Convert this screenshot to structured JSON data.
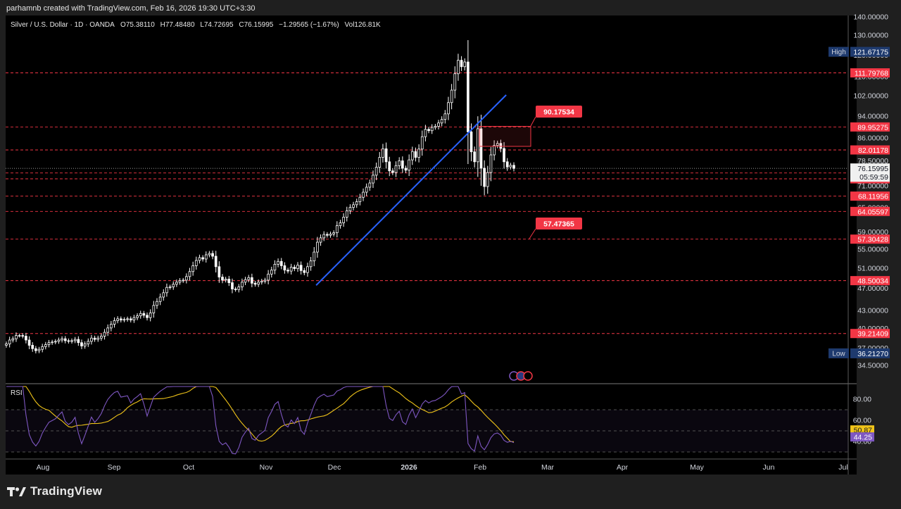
{
  "credit": "parhamnb created with TradingView.com, Feb 16, 2026 19:30 UTC+3:30",
  "brand": {
    "name": "TradingView",
    "icon": "tradingview-logo-icon"
  },
  "colors": {
    "up": "#ffffff",
    "down": "#ffffff",
    "level": "#f23645",
    "trend": "#2962ff",
    "rsi": "#7e57c2",
    "rsi_ma": "#f0c419",
    "high_low": "#1e3a6e"
  },
  "chart_data": {
    "type": "candlestick",
    "symbol": "Silver / U.S. Dollar · 1D · OANDA",
    "ohlc": {
      "o": "75.38110",
      "h": "77.48480",
      "l": "74.72695",
      "c": "76.15995",
      "change": "−1.29565 (−1.67%)",
      "vol": "126.81K"
    },
    "legend_labels": {
      "o": "O",
      "h": "H",
      "l": "L",
      "c": "C",
      "vol": "Vol"
    },
    "y_ticks": [
      "140.00000",
      "130.00000",
      "120.00000",
      "110.00000",
      "102.00000",
      "94.00000",
      "86.00000",
      "78.50000",
      "71.00000",
      "65.00000",
      "59.00000",
      "55.00000",
      "51.00000",
      "47.00000",
      "43.00000",
      "40.00000",
      "37.00000",
      "34.50000"
    ],
    "x_ticks": [
      "Aug",
      "Sep",
      "Oct",
      "Nov",
      "Dec",
      "2026",
      "Feb",
      "Mar",
      "Apr",
      "May",
      "Jun",
      "Jul"
    ],
    "high": {
      "label": "High",
      "value": "121.67175"
    },
    "low": {
      "label": "Low",
      "value": "36.21270"
    },
    "last_price": {
      "value": "76.15995",
      "countdown": "05:59:59"
    },
    "levels": [
      "111.79768",
      "89.95275",
      "82.01178",
      "74.76288",
      "73.02461",
      "68.11956",
      "64.05597",
      "57.30428",
      "48.50034",
      "39.21409"
    ],
    "callouts": [
      "90.17534",
      "57.47365"
    ],
    "closes": [
      37.6,
      38.2,
      38.4,
      38.9,
      38.9,
      38.8,
      38.2,
      37.4,
      36.9,
      36.6,
      36.8,
      37.2,
      37.5,
      37.8,
      37.9,
      38.0,
      38.2,
      38.4,
      38.1,
      38.0,
      38.1,
      38.3,
      37.8,
      37.3,
      37.6,
      38.0,
      38.5,
      38.3,
      38.5,
      38.8,
      39.4,
      40.1,
      40.7,
      41.3,
      41.6,
      41.4,
      41.5,
      41.6,
      41.4,
      41.8,
      42.1,
      42.5,
      42.2,
      41.8,
      42.6,
      43.9,
      44.6,
      45.4,
      46.2,
      47.2,
      47.3,
      47.8,
      48.2,
      48.5,
      48.6,
      49.3,
      50.3,
      51.5,
      52.6,
      53.2,
      52.9,
      53.8,
      54.1,
      53.5,
      51.3,
      49.2,
      48.6,
      48.8,
      48.1,
      46.9,
      46.8,
      47.3,
      48.2,
      48.7,
      49.1,
      48.0,
      47.8,
      48.2,
      48.4,
      48.6,
      49.8,
      50.6,
      51.8,
      52.4,
      51.5,
      50.6,
      50.4,
      51.2,
      50.9,
      51.6,
      50.5,
      50.1,
      51.3,
      52.5,
      54.4,
      56.6,
      57.6,
      58.4,
      58.2,
      58.5,
      58.8,
      60.5,
      61.2,
      62.6,
      64.2,
      65.1,
      65.8,
      66.6,
      67.8,
      69.2,
      70.6,
      71.8,
      74.1,
      76.5,
      79.6,
      82.4,
      78.2,
      75.4,
      74.9,
      77.0,
      78.5,
      76.2,
      75.6,
      78.8,
      81.5,
      79.6,
      82.3,
      86.5,
      89.1,
      88.6,
      89.8,
      90.2,
      91.4,
      92.7,
      94.8,
      99.2,
      104.3,
      111.4,
      117.6,
      114.6,
      116.8,
      88.2,
      81.4,
      78.2,
      89.3,
      76.2,
      70.8,
      74.9,
      80.4,
      83.5,
      84.2,
      82.5,
      78.2,
      76.6,
      77.1,
      76.16
    ],
    "trendline": [
      {
        "date": "2025-11-24",
        "value": 47.6
      },
      {
        "date": "2026-02-12",
        "value": 102.3
      }
    ],
    "rsi": {
      "label": "RSI",
      "y_ticks": [
        "80.00",
        "60.00",
        "40.00"
      ],
      "ma_value": "50.87",
      "value": "44.25"
    }
  }
}
